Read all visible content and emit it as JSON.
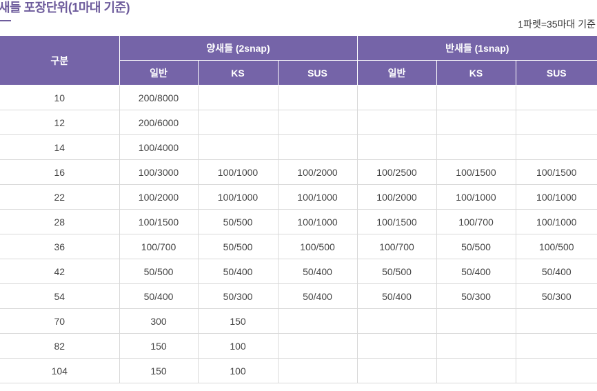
{
  "title": "새들 포장단위(1마대 기준)",
  "note": "1파렛=35마대 기준",
  "table": {
    "corner": "구분",
    "groups": [
      "양새들 (2snap)",
      "반새들 (1snap)"
    ],
    "subheaders": [
      "일반",
      "KS",
      "SUS",
      "일반",
      "KS",
      "SUS"
    ],
    "rows": [
      [
        "10",
        "200/8000",
        "",
        "",
        "",
        "",
        ""
      ],
      [
        "12",
        "200/6000",
        "",
        "",
        "",
        "",
        ""
      ],
      [
        "14",
        "100/4000",
        "",
        "",
        "",
        "",
        ""
      ],
      [
        "16",
        "100/3000",
        "100/1000",
        "100/2000",
        "100/2500",
        "100/1500",
        "100/1500"
      ],
      [
        "22",
        "100/2000",
        "100/1000",
        "100/1000",
        "100/2000",
        "100/1000",
        "100/1000"
      ],
      [
        "28",
        "100/1500",
        "50/500",
        "100/1000",
        "100/1500",
        "100/700",
        "100/1000"
      ],
      [
        "36",
        "100/700",
        "50/500",
        "100/500",
        "100/700",
        "50/500",
        "100/500"
      ],
      [
        "42",
        "50/500",
        "50/400",
        "50/400",
        "50/500",
        "50/400",
        "50/400"
      ],
      [
        "54",
        "50/400",
        "50/300",
        "50/400",
        "50/400",
        "50/300",
        "50/300"
      ],
      [
        "70",
        "300",
        "150",
        "",
        "",
        "",
        ""
      ],
      [
        "82",
        "150",
        "100",
        "",
        "",
        "",
        ""
      ],
      [
        "104",
        "150",
        "100",
        "",
        "",
        "",
        ""
      ]
    ]
  },
  "colors": {
    "header_bg": "#7564a8",
    "title": "#6e5c9c"
  }
}
